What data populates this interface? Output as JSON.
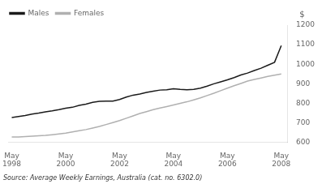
{
  "chart_data": {
    "type": "line",
    "source": "Source: Average Weekly Earnings, Australia (cat. no. 6302.0)",
    "ylabel": "$",
    "background_color": "#ffffff",
    "x": [
      1998.33,
      1998.58,
      1998.83,
      1999.08,
      1999.33,
      1999.58,
      1999.83,
      2000.08,
      2000.33,
      2000.58,
      2000.83,
      2001.08,
      2001.33,
      2001.58,
      2001.83,
      2002.08,
      2002.33,
      2002.58,
      2002.83,
      2003.08,
      2003.33,
      2003.58,
      2003.83,
      2004.08,
      2004.33,
      2004.58,
      2004.83,
      2005.08,
      2005.33,
      2005.58,
      2005.83,
      2006.08,
      2006.33,
      2006.58,
      2006.83,
      2007.08,
      2007.33,
      2007.58,
      2007.83,
      2008.08,
      2008.33
    ],
    "series": [
      {
        "name": "Males",
        "color": "#1a1a1a",
        "values": [
          728,
          733,
          738,
          745,
          750,
          757,
          762,
          768,
          775,
          780,
          790,
          796,
          805,
          810,
          812,
          812,
          820,
          832,
          842,
          848,
          856,
          862,
          868,
          870,
          875,
          872,
          870,
          872,
          878,
          888,
          900,
          910,
          920,
          932,
          945,
          955,
          968,
          980,
          995,
          1010,
          1095
        ]
      },
      {
        "name": "Females",
        "color": "#b0b0b0",
        "values": [
          628,
          628,
          630,
          632,
          634,
          636,
          640,
          644,
          648,
          654,
          660,
          666,
          674,
          682,
          692,
          702,
          712,
          724,
          736,
          748,
          758,
          768,
          776,
          784,
          792,
          800,
          808,
          818,
          828,
          840,
          852,
          865,
          878,
          890,
          902,
          914,
          922,
          930,
          938,
          944,
          950
        ]
      }
    ],
    "xlim": [
      1998.2,
      2008.55
    ],
    "xticks": [
      {
        "value": 1998.33,
        "label": "May\n1998"
      },
      {
        "value": 2000.33,
        "label": "May\n2000"
      },
      {
        "value": 2002.33,
        "label": "May\n2002"
      },
      {
        "value": 2004.33,
        "label": "May\n2004"
      },
      {
        "value": 2006.33,
        "label": "May\n2006"
      },
      {
        "value": 2008.33,
        "label": "May\n2008"
      }
    ],
    "ylim": [
      600,
      1200
    ],
    "yticks": [
      600,
      700,
      800,
      900,
      1000,
      1100,
      1200
    ],
    "grid": false,
    "legend": "upper left"
  }
}
